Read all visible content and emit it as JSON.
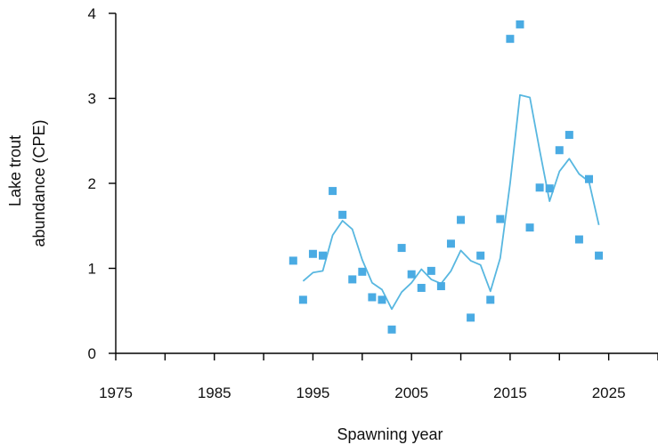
{
  "chart_data": {
    "type": "scatter",
    "xlabel": "Spawning year",
    "ylabel_lines": [
      "Lake trout",
      "abundance  (CPE)"
    ],
    "xlim": [
      1975,
      2030
    ],
    "ylim": [
      0,
      4
    ],
    "x_ticks": [
      1975,
      1985,
      1995,
      2005,
      2015,
      2025
    ],
    "x_minor_ticks": [
      1980,
      1990,
      2000,
      2010,
      2020,
      2030
    ],
    "y_ticks": [
      0,
      1,
      2,
      3,
      4
    ],
    "grid": false,
    "colors": {
      "marker": "#4aabe3",
      "line": "#58b7e0",
      "axis": "#000000"
    },
    "series": [
      {
        "kind": "points",
        "x": [
          1993,
          1994,
          1995,
          1996,
          1997,
          1998,
          1999,
          2000,
          2001,
          2002,
          2003,
          2004,
          2005,
          2006,
          2007,
          2008,
          2009,
          2010,
          2011,
          2012,
          2013,
          2014,
          2015,
          2016,
          2017,
          2018,
          2019,
          2020,
          2021,
          2022,
          2023,
          2024
        ],
        "y": [
          1.09,
          0.63,
          1.17,
          1.15,
          1.91,
          1.63,
          0.87,
          0.96,
          0.66,
          0.63,
          0.28,
          1.24,
          0.93,
          0.77,
          0.97,
          0.79,
          1.29,
          1.57,
          0.42,
          1.15,
          0.63,
          1.58,
          3.7,
          3.87,
          1.48,
          1.95,
          1.94,
          2.39,
          2.57,
          1.34,
          2.05,
          1.15
        ]
      },
      {
        "kind": "line",
        "x": [
          1994,
          1995,
          1996,
          1997,
          1998,
          1999,
          2000,
          2001,
          2002,
          2003,
          2004,
          2005,
          2006,
          2007,
          2008,
          2009,
          2010,
          2011,
          2012,
          2013,
          2014,
          2015,
          2016,
          2017,
          2018,
          2019,
          2020,
          2021,
          2022,
          2023,
          2024
        ],
        "y": [
          0.85,
          0.95,
          0.97,
          1.39,
          1.56,
          1.46,
          1.1,
          0.83,
          0.75,
          0.52,
          0.72,
          0.83,
          0.99,
          0.87,
          0.82,
          0.97,
          1.21,
          1.09,
          1.04,
          0.73,
          1.12,
          2.0,
          3.04,
          3.01,
          2.39,
          1.79,
          2.14,
          2.29,
          2.11,
          2.02,
          1.51
        ]
      }
    ]
  }
}
